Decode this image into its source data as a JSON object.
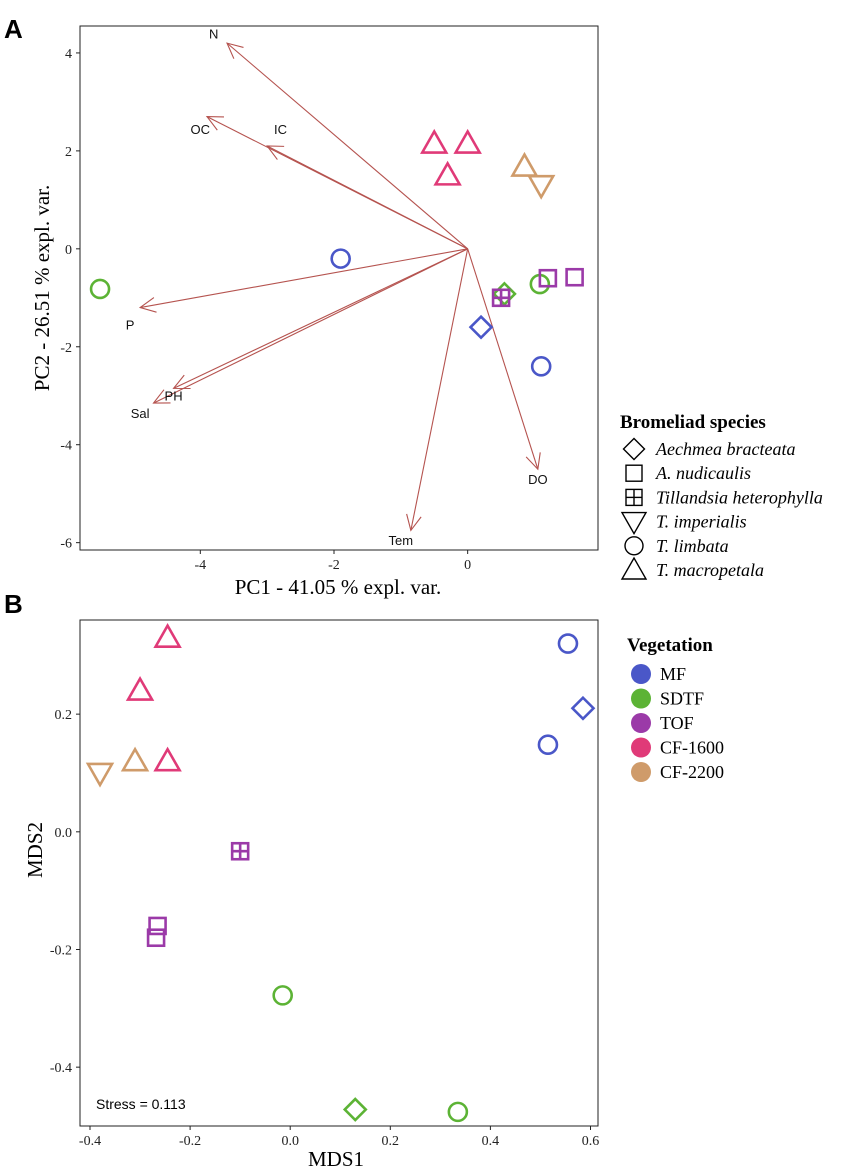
{
  "colors": {
    "MF": "#4a57c8",
    "SDTF": "#5cb335",
    "TOF": "#9b3aa8",
    "CF-1600": "#e03a78",
    "CF-2200": "#cf9b6a",
    "arrow": "#b5534f"
  },
  "chart_data": [
    {
      "panel_label": "A",
      "type": "scatter",
      "title": "",
      "xlabel": "PC1 -  41.05 % expl. var.",
      "ylabel": "PC2 -  26.51 % expl. var.",
      "xlim": [
        -5.8,
        1.95
      ],
      "ylim": [
        -6.15,
        4.55
      ],
      "xticks": [
        -4,
        -2,
        0
      ],
      "yticks": [
        -6,
        -4,
        -2,
        0,
        2,
        4
      ],
      "grid": false,
      "points": [
        {
          "x": -5.5,
          "y": -0.82,
          "species": "T. limbata",
          "vegetation": "SDTF"
        },
        {
          "x": -1.9,
          "y": -0.2,
          "species": "T. limbata",
          "vegetation": "MF"
        },
        {
          "x": 0.2,
          "y": -1.6,
          "species": "Aechmea bracteata",
          "vegetation": "MF"
        },
        {
          "x": 1.1,
          "y": -2.4,
          "species": "T. limbata",
          "vegetation": "MF"
        },
        {
          "x": 0.55,
          "y": -0.92,
          "species": "Aechmea bracteata",
          "vegetation": "SDTF"
        },
        {
          "x": 1.08,
          "y": -0.72,
          "species": "T. limbata",
          "vegetation": "SDTF"
        },
        {
          "x": 0.5,
          "y": -1.0,
          "species": "Tillandsia heterophylla",
          "vegetation": "TOF"
        },
        {
          "x": 1.2,
          "y": -0.6,
          "species": "A. nudicaulis",
          "vegetation": "TOF"
        },
        {
          "x": 1.6,
          "y": -0.58,
          "species": "A. nudicaulis",
          "vegetation": "TOF"
        },
        {
          "x": -0.5,
          "y": 2.15,
          "species": "T. macropetala",
          "vegetation": "CF-1600"
        },
        {
          "x": 0.0,
          "y": 2.15,
          "species": "T. macropetala",
          "vegetation": "CF-1600"
        },
        {
          "x": -0.3,
          "y": 1.5,
          "species": "T. macropetala",
          "vegetation": "CF-1600"
        },
        {
          "x": 0.85,
          "y": 1.68,
          "species": "T. macropetala",
          "vegetation": "CF-2200"
        },
        {
          "x": 1.1,
          "y": 1.3,
          "species": "T. imperialis",
          "vegetation": "CF-2200"
        }
      ],
      "vectors": [
        {
          "label": "N",
          "x": -3.6,
          "y": 4.2
        },
        {
          "label": "OC",
          "x": -3.9,
          "y": 2.7
        },
        {
          "label": "IC",
          "x": -3.0,
          "y": 2.1
        },
        {
          "label": "P",
          "x": -4.9,
          "y": -1.2
        },
        {
          "label": "PH",
          "x": -4.4,
          "y": -2.85
        },
        {
          "label": "Sal",
          "x": -4.7,
          "y": -3.15
        },
        {
          "label": "DO",
          "x": 1.05,
          "y": -4.5
        },
        {
          "label": "Tem",
          "x": -0.85,
          "y": -5.75
        }
      ],
      "vector_label_positions": [
        {
          "label": "N",
          "x": -3.8,
          "y": 4.4
        },
        {
          "label": "OC",
          "x": -4.0,
          "y": 2.45
        },
        {
          "label": "IC",
          "x": -2.8,
          "y": 2.45
        },
        {
          "label": "P",
          "x": -5.05,
          "y": -1.55
        },
        {
          "label": "PH",
          "x": -4.4,
          "y": -3.0
        },
        {
          "label": "Sal",
          "x": -4.9,
          "y": -3.35
        },
        {
          "label": "DO",
          "x": 1.05,
          "y": -4.7
        },
        {
          "label": "Tem",
          "x": -1.0,
          "y": -5.95
        }
      ]
    },
    {
      "panel_label": "B",
      "type": "scatter",
      "title": "",
      "xlabel": "MDS1",
      "ylabel": "MDS2",
      "xlim": [
        -0.42,
        0.615
      ],
      "ylim": [
        -0.5,
        0.36
      ],
      "xticks": [
        -0.4,
        -0.2,
        0.0,
        0.2,
        0.4,
        0.6
      ],
      "xtick_labels": [
        "-0.4",
        "-0.2",
        "0.0",
        "0.2",
        "0.4",
        "0.6"
      ],
      "yticks": [
        -0.4,
        -0.2,
        0.0,
        0.2
      ],
      "ytick_labels": [
        "-0.4",
        "-0.2",
        "0.0",
        "0.2"
      ],
      "grid": false,
      "annotation": "Stress = 0.113",
      "points": [
        {
          "x": -0.245,
          "y": 0.33,
          "species": "T. macropetala",
          "vegetation": "CF-1600"
        },
        {
          "x": -0.3,
          "y": 0.24,
          "species": "T. macropetala",
          "vegetation": "CF-1600"
        },
        {
          "x": -0.245,
          "y": 0.12,
          "species": "T. macropetala",
          "vegetation": "CF-1600"
        },
        {
          "x": -0.31,
          "y": 0.12,
          "species": "T. macropetala",
          "vegetation": "CF-2200"
        },
        {
          "x": -0.38,
          "y": 0.1,
          "species": "T. imperialis",
          "vegetation": "CF-2200"
        },
        {
          "x": -0.1,
          "y": -0.033,
          "species": "Tillandsia heterophylla",
          "vegetation": "TOF"
        },
        {
          "x": -0.265,
          "y": -0.16,
          "species": "A. nudicaulis",
          "vegetation": "TOF"
        },
        {
          "x": -0.268,
          "y": -0.18,
          "species": "A. nudicaulis",
          "vegetation": "TOF"
        },
        {
          "x": -0.015,
          "y": -0.278,
          "species": "T. limbata",
          "vegetation": "SDTF"
        },
        {
          "x": 0.13,
          "y": -0.472,
          "species": "Aechmea bracteata",
          "vegetation": "SDTF"
        },
        {
          "x": 0.335,
          "y": -0.476,
          "species": "T. limbata",
          "vegetation": "SDTF"
        },
        {
          "x": 0.555,
          "y": 0.32,
          "species": "T. limbata",
          "vegetation": "MF"
        },
        {
          "x": 0.585,
          "y": 0.21,
          "species": "Aechmea bracteata",
          "vegetation": "MF"
        },
        {
          "x": 0.515,
          "y": 0.148,
          "species": "T. limbata",
          "vegetation": "MF"
        }
      ]
    }
  ],
  "legend_species": {
    "title": "Bromeliad species",
    "items": [
      {
        "label": "Aechmea bracteata",
        "shape": "diamond"
      },
      {
        "label": "A. nudicaulis",
        "shape": "square"
      },
      {
        "label": "Tillandsia heterophylla",
        "shape": "square-plus"
      },
      {
        "label": "T. imperialis",
        "shape": "triangle-down"
      },
      {
        "label": "T. limbata",
        "shape": "circle"
      },
      {
        "label": "T. macropetala",
        "shape": "triangle-up"
      }
    ]
  },
  "legend_vegetation": {
    "title": "Vegetation",
    "items": [
      "MF",
      "SDTF",
      "TOF",
      "CF-1600",
      "CF-2200"
    ]
  }
}
